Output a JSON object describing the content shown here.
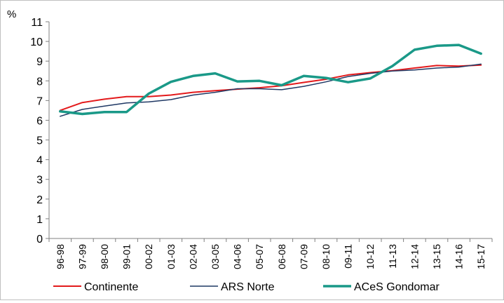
{
  "chart_data": {
    "type": "line",
    "title": "",
    "ylabel": "%",
    "xlabel": "",
    "ylim": [
      0,
      11
    ],
    "yticks": [
      0,
      1,
      2,
      3,
      4,
      5,
      6,
      7,
      8,
      9,
      10,
      11
    ],
    "grid": false,
    "legend_position": "bottom",
    "categories": [
      "96-98",
      "97-99",
      "98-00",
      "99-01",
      "00-02",
      "01-03",
      "02-04",
      "03-05",
      "04-06",
      "05-07",
      "06-08",
      "07-09",
      "08-10",
      "09-11",
      "10-12",
      "11-13",
      "12-14",
      "13-15",
      "14-16",
      "15-17"
    ],
    "series": [
      {
        "name": "Continente",
        "color": "#e31a1c",
        "values": [
          6.5,
          6.9,
          7.07,
          7.2,
          7.2,
          7.28,
          7.42,
          7.5,
          7.58,
          7.65,
          7.75,
          7.92,
          8.08,
          8.3,
          8.42,
          8.52,
          8.65,
          8.78,
          8.75,
          8.8
        ]
      },
      {
        "name": "ARS Norte",
        "color": "#1f3864",
        "values": [
          6.2,
          6.55,
          6.72,
          6.88,
          6.93,
          7.05,
          7.28,
          7.42,
          7.6,
          7.6,
          7.55,
          7.72,
          7.95,
          8.22,
          8.38,
          8.5,
          8.55,
          8.65,
          8.7,
          8.85
        ]
      },
      {
        "name": "ACeS Gondomar",
        "color": "#1a9988",
        "values": [
          6.45,
          6.32,
          6.42,
          6.42,
          7.35,
          7.95,
          8.25,
          8.38,
          7.97,
          8.0,
          7.78,
          8.25,
          8.15,
          7.93,
          8.12,
          8.75,
          9.58,
          9.78,
          9.82,
          9.38
        ]
      }
    ]
  }
}
